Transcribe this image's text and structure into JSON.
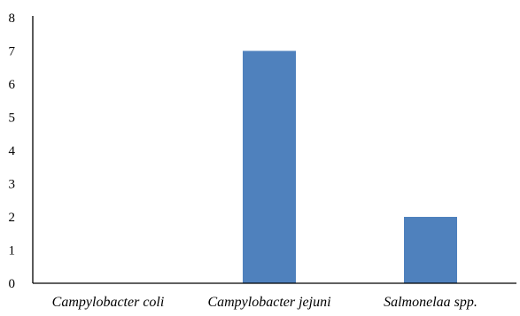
{
  "chart_data": {
    "type": "bar",
    "categories": [
      "Campylobacter coli",
      "Campylobacter jejuni",
      "Salmonelaa spp."
    ],
    "values": [
      0,
      7,
      2
    ],
    "ylim": [
      0,
      8
    ],
    "yticks": [
      0,
      1,
      2,
      3,
      4,
      5,
      6,
      7,
      8
    ],
    "grid": false,
    "legend": "none",
    "bar_color": "#4F81BD",
    "axis_color": "#000000"
  }
}
